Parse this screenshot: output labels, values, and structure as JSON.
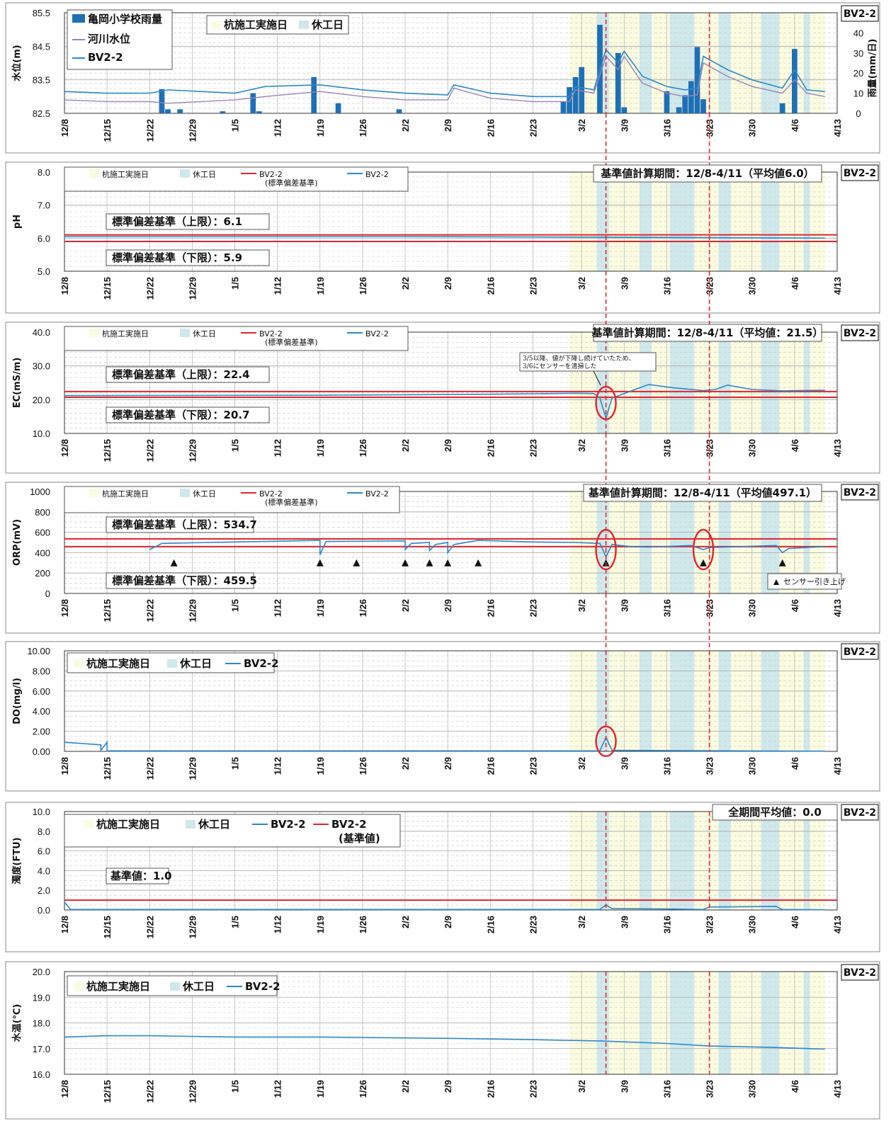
{
  "chart_data": [
    {
      "type": "bar+line",
      "ylabel": "水位(m)",
      "y2label": "雨量(mm/日)",
      "ylim": [
        82.5,
        85.5
      ],
      "y_ticks": [
        "85.5",
        "84.5",
        "83.5",
        "82.5"
      ],
      "y2lim": [
        0,
        50
      ],
      "y2_ticks": [
        "40",
        "30",
        "20",
        "10",
        "0"
      ],
      "station": "BV2-2",
      "legend": {
        "rain": "亀岡小学校雨量",
        "river": "河川水位",
        "bv": "BV2-2",
        "work": "杭施工実施日",
        "rest": "休工日"
      },
      "rainfall_bars": [
        {
          "x": "12/24",
          "value": 12
        },
        {
          "x": "12/25",
          "value": 2
        },
        {
          "x": "12/27",
          "value": 2
        },
        {
          "x": "1/3",
          "value": 1
        },
        {
          "x": "1/8",
          "value": 10
        },
        {
          "x": "1/9",
          "value": 1
        },
        {
          "x": "1/18",
          "value": 18
        },
        {
          "x": "1/22",
          "value": 5
        },
        {
          "x": "2/1",
          "value": 2
        },
        {
          "x": "2/28",
          "value": 6
        },
        {
          "x": "2/29",
          "value": 13
        },
        {
          "x": "3/1",
          "value": 18
        },
        {
          "x": "3/2",
          "value": 23
        },
        {
          "x": "3/5",
          "value": 44
        },
        {
          "x": "3/8",
          "value": 30
        },
        {
          "x": "3/9",
          "value": 3
        },
        {
          "x": "3/16",
          "value": 11
        },
        {
          "x": "3/18",
          "value": 3
        },
        {
          "x": "3/19",
          "value": 9
        },
        {
          "x": "3/20",
          "value": 16
        },
        {
          "x": "3/21",
          "value": 33
        },
        {
          "x": "3/22",
          "value": 7
        },
        {
          "x": "4/4",
          "value": 5
        },
        {
          "x": "4/6",
          "value": 32
        }
      ],
      "series": [
        {
          "name": "河川水位",
          "values": [
            [
              "12/8",
              82.9
            ],
            [
              "12/15",
              82.85
            ],
            [
              "12/22",
              82.85
            ],
            [
              "12/25",
              82.8
            ],
            [
              "1/5",
              82.9
            ],
            [
              "1/10",
              83.0
            ],
            [
              "1/19",
              83.15
            ],
            [
              "1/26",
              83.0
            ],
            [
              "2/2",
              82.9
            ],
            [
              "2/9",
              82.9
            ],
            [
              "2/10",
              83.25
            ],
            [
              "2/16",
              82.95
            ],
            [
              "2/23",
              82.85
            ],
            [
              "2/29",
              82.85
            ],
            [
              "3/1",
              83.2
            ],
            [
              "3/4",
              83.1
            ],
            [
              "3/6",
              84.2
            ],
            [
              "3/8",
              83.8
            ],
            [
              "3/9",
              84.2
            ],
            [
              "3/12",
              83.4
            ],
            [
              "3/16",
              83.1
            ],
            [
              "3/19",
              83.0
            ],
            [
              "3/21",
              83.05
            ],
            [
              "3/22",
              84.0
            ],
            [
              "3/26",
              83.6
            ],
            [
              "3/30",
              83.3
            ],
            [
              "4/4",
              83.1
            ],
            [
              "4/6",
              83.5
            ],
            [
              "4/8",
              83.1
            ],
            [
              "4/11",
              83.0
            ]
          ]
        },
        {
          "name": "BV2-2",
          "values": [
            [
              "12/8",
              83.15
            ],
            [
              "12/15",
              83.1
            ],
            [
              "12/22",
              83.1
            ],
            [
              "12/25",
              83.2
            ],
            [
              "1/5",
              83.1
            ],
            [
              "1/10",
              83.3
            ],
            [
              "1/19",
              83.35
            ],
            [
              "1/26",
              83.2
            ],
            [
              "2/2",
              83.1
            ],
            [
              "2/9",
              83.05
            ],
            [
              "2/10",
              83.35
            ],
            [
              "2/16",
              83.1
            ],
            [
              "2/23",
              83.0
            ],
            [
              "2/29",
              83.0
            ],
            [
              "3/1",
              83.3
            ],
            [
              "3/4",
              83.2
            ],
            [
              "3/6",
              84.4
            ],
            [
              "3/8",
              84.0
            ],
            [
              "3/9",
              84.35
            ],
            [
              "3/12",
              83.6
            ],
            [
              "3/16",
              83.3
            ],
            [
              "3/19",
              83.2
            ],
            [
              "3/21",
              83.25
            ],
            [
              "3/22",
              84.2
            ],
            [
              "3/26",
              83.8
            ],
            [
              "3/30",
              83.5
            ],
            [
              "4/4",
              83.25
            ],
            [
              "4/6",
              83.8
            ],
            [
              "4/8",
              83.2
            ],
            [
              "4/11",
              83.15
            ]
          ]
        }
      ]
    },
    {
      "type": "line",
      "ylabel": "pH",
      "ylim": [
        5.0,
        8.0
      ],
      "y_ticks": [
        "8.0",
        "7.0",
        "6.0",
        "5.0"
      ],
      "station": "BV2-2",
      "legend": {
        "work": "杭施工実施日",
        "rest": "休工日",
        "ref": "BV2-2",
        "ref_sub": "(標準偏差基準)",
        "bv": "BV2-2"
      },
      "calc_period": "基準値計算期間：12/8-4/11（平均値6.0）",
      "upper_label": "標準偏差基準（上限）：6.1",
      "upper": 6.1,
      "lower_label": "標準偏差基準（下限）：5.9",
      "lower": 5.9,
      "series": [
        {
          "name": "BV2-2",
          "values": [
            [
              "12/8",
              6.05
            ],
            [
              "1/19",
              6.05
            ],
            [
              "2/2",
              6.05
            ],
            [
              "3/5",
              6.03
            ],
            [
              "4/11",
              6.0
            ]
          ]
        }
      ]
    },
    {
      "type": "line",
      "ylabel": "EC(mS/m)",
      "ylim": [
        10.0,
        40.0
      ],
      "y_ticks": [
        "40.0",
        "30.0",
        "20.0",
        "10.0"
      ],
      "station": "BV2-2",
      "legend": {
        "work": "杭施工実施日",
        "rest": "休工日",
        "ref": "BV2-2",
        "ref_sub": "(標準偏差基準)",
        "bv": "BV2-2"
      },
      "calc_period": "基準値計算期間：12/8-4/11（平均値：21.5）",
      "upper_label": "標準偏差基準（上限）：22.4",
      "upper": 22.4,
      "lower_label": "標準偏差基準（下限）：20.7",
      "lower": 20.7,
      "annotation": [
        "3/5以降、値が下降し続けていたため、",
        "3/6にセンサーを清掃した"
      ],
      "series": [
        {
          "name": "BV2-2",
          "values": [
            [
              "12/8",
              21.2
            ],
            [
              "1/19",
              21.3
            ],
            [
              "2/16",
              21.6
            ],
            [
              "3/1",
              21.9
            ],
            [
              "3/4",
              21.8
            ],
            [
              "3/5",
              20.5
            ],
            [
              "3/6",
              14.5
            ],
            [
              "3/7",
              20.5
            ],
            [
              "3/9",
              21.8
            ],
            [
              "3/13",
              24.5
            ],
            [
              "3/17",
              23.5
            ],
            [
              "3/22",
              22.7
            ],
            [
              "3/24",
              23.0
            ],
            [
              "3/26",
              24.3
            ],
            [
              "3/30",
              23.0
            ],
            [
              "4/4",
              22.6
            ],
            [
              "4/11",
              22.8
            ]
          ]
        }
      ]
    },
    {
      "type": "line",
      "ylabel": "ORP(mV)",
      "ylim": [
        0,
        1000
      ],
      "y_ticks": [
        "1000",
        "800",
        "600",
        "400",
        "200",
        "0"
      ],
      "station": "BV2-2",
      "legend": {
        "work": "杭施工実施日",
        "rest": "休工日",
        "ref": "BV2-2",
        "ref_sub": "(標準偏差基準)",
        "bv": "BV2-2"
      },
      "calc_period": "基準値計算期間：12/8-4/11（平均値497.1）",
      "upper_label": "標準偏差基準（上限）：534.7",
      "upper": 534.7,
      "lower_label": "標準偏差基準（下限）：459.5",
      "lower": 459.5,
      "sensor_label": "センサー引き上げ",
      "sensor_marks": [
        "12/26",
        "1/19",
        "1/25",
        "2/2",
        "2/6",
        "2/9",
        "2/14",
        "3/6",
        "3/22",
        "4/4"
      ],
      "series": [
        {
          "name": "BV2-2",
          "values": [
            [
              "12/22",
              430
            ],
            [
              "12/24",
              490
            ],
            [
              "1/5",
              505
            ],
            [
              "1/19",
              520
            ],
            [
              "1/19",
              380
            ],
            [
              "1/20",
              510
            ],
            [
              "2/2",
              515
            ],
            [
              "2/2",
              430
            ],
            [
              "2/3",
              490
            ],
            [
              "2/6",
              500
            ],
            [
              "2/6",
              420
            ],
            [
              "2/7",
              480
            ],
            [
              "2/9",
              500
            ],
            [
              "2/9",
              400
            ],
            [
              "2/10",
              480
            ],
            [
              "2/14",
              520
            ],
            [
              "2/23",
              505
            ],
            [
              "3/1",
              500
            ],
            [
              "3/5",
              490
            ],
            [
              "3/6",
              360
            ],
            [
              "3/7",
              480
            ],
            [
              "3/10",
              460
            ],
            [
              "3/13",
              455
            ],
            [
              "3/20",
              470
            ],
            [
              "3/22",
              430
            ],
            [
              "3/23",
              450
            ],
            [
              "4/3",
              470
            ],
            [
              "4/4",
              400
            ],
            [
              "4/5",
              440
            ],
            [
              "4/11",
              460
            ]
          ]
        }
      ]
    },
    {
      "type": "line",
      "ylabel": "DO(mg/l)",
      "ylim": [
        0,
        10
      ],
      "y_ticks": [
        "10.00",
        "8.00",
        "6.00",
        "4.00",
        "2.00",
        "0.00"
      ],
      "station": "BV2-2",
      "legend": {
        "work": "杭施工実施日",
        "rest": "休工日",
        "bv": "BV2-2"
      },
      "series": [
        {
          "name": "BV2-2",
          "values": [
            [
              "12/8",
              0.9
            ],
            [
              "12/14",
              0.65
            ],
            [
              "12/14",
              0.1
            ],
            [
              "12/15",
              0.9
            ],
            [
              "12/15",
              0.05
            ],
            [
              "3/5",
              0.05
            ],
            [
              "3/6",
              1.4
            ],
            [
              "3/7",
              0.1
            ],
            [
              "4/11",
              0.02
            ]
          ]
        }
      ]
    },
    {
      "type": "line",
      "ylabel": "濁度(FTU)",
      "ylim": [
        0,
        10
      ],
      "y_ticks": [
        "10.0",
        "8.0",
        "6.0",
        "4.0",
        "2.0",
        "0.0"
      ],
      "station": "BV2-2",
      "legend": {
        "work": "杭施工実施日",
        "rest": "休工日",
        "bv": "BV2-2",
        "ref": "BV2-2",
        "ref_sub": "(基準値)"
      },
      "calc_period": "全期間平均値：0.0",
      "ref_label": "基準値：1.0",
      "ref_value": 1.0,
      "series": [
        {
          "name": "BV2-2",
          "values": [
            [
              "12/8",
              0.8
            ],
            [
              "12/9",
              0.05
            ],
            [
              "3/5",
              0.05
            ],
            [
              "3/6",
              0.5
            ],
            [
              "3/7",
              0.15
            ],
            [
              "3/16",
              0.1
            ],
            [
              "3/22",
              0.05
            ],
            [
              "3/23",
              0.3
            ],
            [
              "4/3",
              0.35
            ],
            [
              "4/4",
              0.05
            ],
            [
              "4/11",
              0.02
            ]
          ]
        }
      ]
    },
    {
      "type": "line",
      "ylabel": "水温(℃)",
      "ylim": [
        16.0,
        20.0
      ],
      "y_ticks": [
        "20.0",
        "19.0",
        "18.0",
        "17.0",
        "16.0"
      ],
      "station": "BV2-2",
      "legend": {
        "work": "杭施工実施日",
        "rest": "休工日",
        "bv": "BV2-2"
      },
      "series": [
        {
          "name": "BV2-2",
          "values": [
            [
              "12/8",
              17.45
            ],
            [
              "12/15",
              17.5
            ],
            [
              "12/22",
              17.5
            ],
            [
              "1/5",
              17.45
            ],
            [
              "1/19",
              17.45
            ],
            [
              "2/9",
              17.4
            ],
            [
              "2/23",
              17.35
            ],
            [
              "3/5",
              17.3
            ],
            [
              "3/16",
              17.2
            ],
            [
              "3/23",
              17.1
            ],
            [
              "4/2",
              17.05
            ],
            [
              "4/11",
              16.98
            ]
          ]
        }
      ]
    }
  ],
  "shared": {
    "x_ticks": [
      "12/8",
      "12/15",
      "12/22",
      "12/29",
      "1/5",
      "1/12",
      "1/19",
      "1/26",
      "2/2",
      "2/9",
      "2/16",
      "2/23",
      "3/2",
      "3/9",
      "3/16",
      "3/23",
      "3/30",
      "4/6",
      "4/13"
    ],
    "x_range": [
      "12/8",
      "4/13"
    ],
    "work_period": [
      "2/29",
      "4/11"
    ],
    "rest_days": [
      "3/5",
      "3/6",
      "3/12",
      "3/13",
      "3/17",
      "3/18",
      "3/19",
      "3/20",
      "3/25",
      "3/26",
      "4/1",
      "4/2",
      "4/3",
      "4/8"
    ],
    "event_lines": [
      "3/6",
      "3/23"
    ],
    "colors": {
      "bv_line": "#2c88c8",
      "ref_line": "#e0262f",
      "rain_bar": "#1f6fb5",
      "river_line": "#9a84b8",
      "work_fill": "#fbfbe0",
      "rest_fill": "#cfe8ec"
    }
  }
}
